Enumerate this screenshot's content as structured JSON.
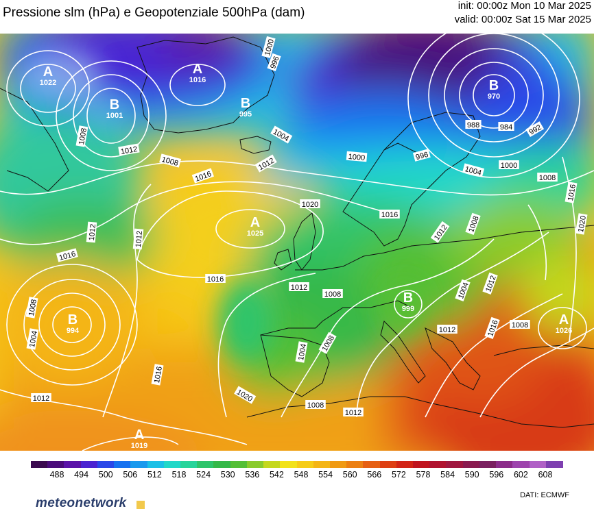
{
  "title": "Pressione slm (hPa) e Geopotenziale 500hPa (dam)",
  "init": "init: 00:00z Mon 10 Mar 2025",
  "valid": "valid: 00:00z Sat 15 Mar 2025",
  "pressure_centers": [
    {
      "letter": "A",
      "value": "1022"
    },
    {
      "letter": "B",
      "value": "1001"
    },
    {
      "letter": "A",
      "value": "1016"
    },
    {
      "letter": "B",
      "value": "995"
    },
    {
      "letter": "B",
      "value": "970"
    },
    {
      "letter": "A",
      "value": "1025"
    },
    {
      "letter": "B",
      "value": "994"
    },
    {
      "letter": "B",
      "value": "999"
    },
    {
      "letter": "A",
      "value": "1026"
    },
    {
      "letter": "A",
      "value": "1019"
    }
  ],
  "isobar_labels": [
    "1000",
    "996",
    "1008",
    "1012",
    "1008",
    "1016",
    "1012",
    "1004",
    "1000",
    "988",
    "984",
    "992",
    "996",
    "1004",
    "1000",
    "1008",
    "1016",
    "1020",
    "1020",
    "1008",
    "1016",
    "1012",
    "1012",
    "1016",
    "1012",
    "1008",
    "1016",
    "1012",
    "1008",
    "1004",
    "1016",
    "1012",
    "1012",
    "1008",
    "1004",
    "1008",
    "1004",
    "1008",
    "1016",
    "1020",
    "1012",
    "1008",
    "1012",
    "1016"
  ],
  "colorbar": {
    "colors": [
      "#3b0a4f",
      "#4a0b7a",
      "#5a12a8",
      "#4b23d1",
      "#2a48e8",
      "#1672f0",
      "#1a9aee",
      "#1cc0e6",
      "#22d8c8",
      "#27d49a",
      "#2ec46a",
      "#34b848",
      "#54bf36",
      "#8acb2c",
      "#c4d81e",
      "#f2e21a",
      "#f6cc17",
      "#f4b515",
      "#f09a13",
      "#ec7f12",
      "#e65f12",
      "#de3f13",
      "#d22416",
      "#c0141f",
      "#b0122f",
      "#a0163f",
      "#8a1a4f",
      "#7a2060",
      "#8c2c8a",
      "#9e44ad",
      "#b060c6",
      "#7e3fb0"
    ],
    "tick_labels": [
      "488",
      "494",
      "500",
      "506",
      "512",
      "518",
      "524",
      "530",
      "536",
      "542",
      "548",
      "554",
      "560",
      "566",
      "572",
      "578",
      "584",
      "590",
      "596",
      "602",
      "608"
    ]
  },
  "logo": "meteonetwork",
  "credit": "DATI:  ECMWF"
}
